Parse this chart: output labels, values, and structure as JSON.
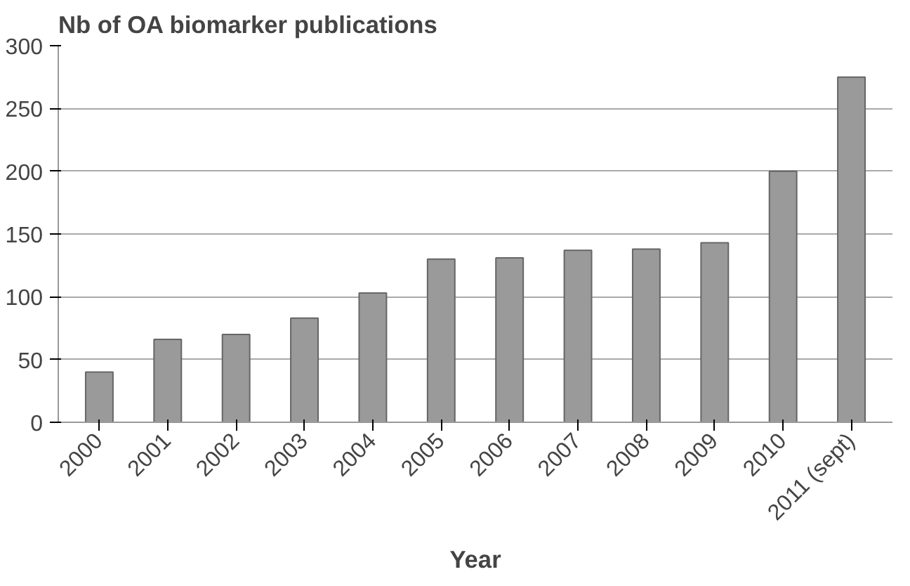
{
  "chart_data": {
    "type": "bar",
    "title": "Nb of  OA biomarker publications",
    "xlabel": "Year",
    "categories": [
      "2000",
      "2001",
      "2002",
      "2003",
      "2004",
      "2005",
      "2006",
      "2007",
      "2008",
      "2009",
      "2010",
      "2011 (sept)"
    ],
    "values": [
      40,
      66,
      70,
      83,
      103,
      130,
      131,
      137,
      138,
      143,
      200,
      275
    ],
    "color": "#9a9a9a",
    "ylim": [
      0,
      300
    ],
    "yticks": [
      0,
      50,
      100,
      150,
      200,
      250,
      300
    ],
    "grid": "y"
  }
}
